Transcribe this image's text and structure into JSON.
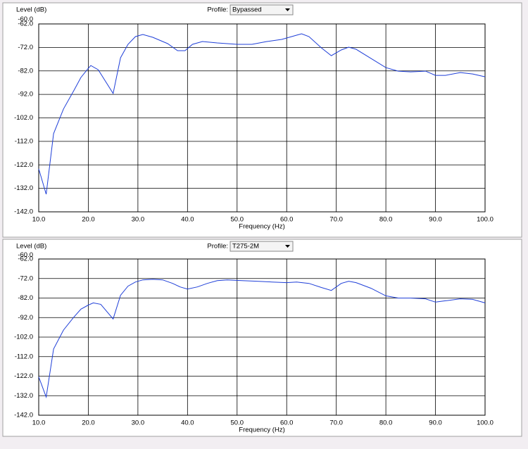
{
  "chart_data": [
    {
      "type": "line",
      "y_label": "Level (dB)",
      "profile_label": "Profile:",
      "profile": "Bypassed",
      "x_label": "Frequency (Hz)",
      "color": "#1f3fd8",
      "xlim": [
        10,
        100
      ],
      "ylim": [
        -142,
        -62
      ],
      "grid": true,
      "xticks": [
        {
          "value": 10,
          "label": "10.0"
        },
        {
          "value": 20,
          "label": "20.0"
        },
        {
          "value": 30,
          "label": "30.0"
        },
        {
          "value": 40,
          "label": "40.0"
        },
        {
          "value": 50,
          "label": "50.0"
        },
        {
          "value": 60,
          "label": "60.0"
        },
        {
          "value": 70,
          "label": "70.0"
        },
        {
          "value": 80,
          "label": "80.0"
        },
        {
          "value": 90,
          "label": "90.0"
        },
        {
          "value": 100,
          "label": "100.0"
        }
      ],
      "yticks": [
        {
          "value": -60,
          "label": "-60.0"
        },
        {
          "value": -62,
          "label": "-62.0"
        },
        {
          "value": -72,
          "label": "-72.0"
        },
        {
          "value": -82,
          "label": "-82.0"
        },
        {
          "value": -92,
          "label": "-92.0"
        },
        {
          "value": -102,
          "label": "-102.0"
        },
        {
          "value": -112,
          "label": "-112.0"
        },
        {
          "value": -122,
          "label": "-122.0"
        },
        {
          "value": -132,
          "label": "-132.0"
        },
        {
          "value": -142,
          "label": "-142.0"
        }
      ],
      "x": [
        10,
        11.5,
        13,
        15,
        17,
        18.5,
        20,
        20.5,
        22,
        25,
        26.5,
        28,
        29.5,
        31,
        33,
        36,
        38,
        39.5,
        41,
        43,
        46,
        50,
        53,
        56,
        59,
        62,
        63,
        64.5,
        67,
        69,
        71,
        72.5,
        74,
        77,
        80,
        82.5,
        85,
        88,
        90,
        92,
        95,
        97.5,
        100
      ],
      "values": [
        -123.7,
        -134.5,
        -108.7,
        -98.2,
        -90.7,
        -84.8,
        -80.9,
        -79.7,
        -81.5,
        -91.6,
        -76.4,
        -70.7,
        -67.4,
        -66.5,
        -67.7,
        -70.4,
        -73.4,
        -73.4,
        -70.7,
        -69.5,
        -70.1,
        -70.7,
        -70.7,
        -69.5,
        -68.6,
        -66.8,
        -66.2,
        -67.4,
        -72.2,
        -75.5,
        -73.1,
        -71.9,
        -72.8,
        -76.7,
        -80.6,
        -82.1,
        -82.4,
        -82.1,
        -83.9,
        -83.9,
        -82.7,
        -83.3,
        -84.5
      ]
    },
    {
      "type": "line",
      "y_label": "Level (dB)",
      "profile_label": "Profile:",
      "profile": "T275-2M",
      "x_label": "Frequency (Hz)",
      "color": "#1f3fd8",
      "xlim": [
        10,
        100
      ],
      "ylim": [
        -142,
        -62
      ],
      "grid": true,
      "xticks": [
        {
          "value": 10,
          "label": "10.0"
        },
        {
          "value": 20,
          "label": "20.0"
        },
        {
          "value": 30,
          "label": "30.0"
        },
        {
          "value": 40,
          "label": "40.0"
        },
        {
          "value": 50,
          "label": "50.0"
        },
        {
          "value": 60,
          "label": "60.0"
        },
        {
          "value": 70,
          "label": "70.0"
        },
        {
          "value": 80,
          "label": "80.0"
        },
        {
          "value": 90,
          "label": "90.0"
        },
        {
          "value": 100,
          "label": "100.0"
        }
      ],
      "yticks": [
        {
          "value": -60,
          "label": "-60.0"
        },
        {
          "value": -62,
          "label": "-62.0"
        },
        {
          "value": -72,
          "label": "-72.0"
        },
        {
          "value": -82,
          "label": "-82.0"
        },
        {
          "value": -92,
          "label": "-92.0"
        },
        {
          "value": -102,
          "label": "-102.0"
        },
        {
          "value": -112,
          "label": "-112.0"
        },
        {
          "value": -122,
          "label": "-122.0"
        },
        {
          "value": -132,
          "label": "-132.0"
        },
        {
          "value": -142,
          "label": "-142.0"
        }
      ],
      "x": [
        10,
        11.5,
        13,
        15,
        17,
        18.5,
        20,
        21,
        22.5,
        25,
        26.5,
        28,
        29.5,
        31,
        33,
        35,
        37,
        38.5,
        40,
        42,
        44,
        46,
        48,
        51,
        54,
        57,
        60,
        62,
        64.5,
        67,
        69,
        71,
        72.5,
        74,
        77,
        80,
        82.5,
        85,
        88,
        90,
        92,
        95,
        97.5,
        100
      ],
      "values": [
        -122.4,
        -132.7,
        -108.1,
        -98.4,
        -92.0,
        -87.7,
        -85.6,
        -84.5,
        -85.2,
        -92.7,
        -80.6,
        -75.9,
        -73.8,
        -72.7,
        -72.4,
        -72.7,
        -74.5,
        -76.3,
        -77.4,
        -76.3,
        -74.5,
        -73.1,
        -72.7,
        -73.1,
        -73.4,
        -73.8,
        -74.1,
        -73.8,
        -74.5,
        -76.6,
        -78.1,
        -74.5,
        -73.4,
        -74.1,
        -77.0,
        -80.9,
        -82.0,
        -82.0,
        -82.4,
        -84.1,
        -83.4,
        -82.4,
        -82.7,
        -84.5
      ]
    }
  ]
}
